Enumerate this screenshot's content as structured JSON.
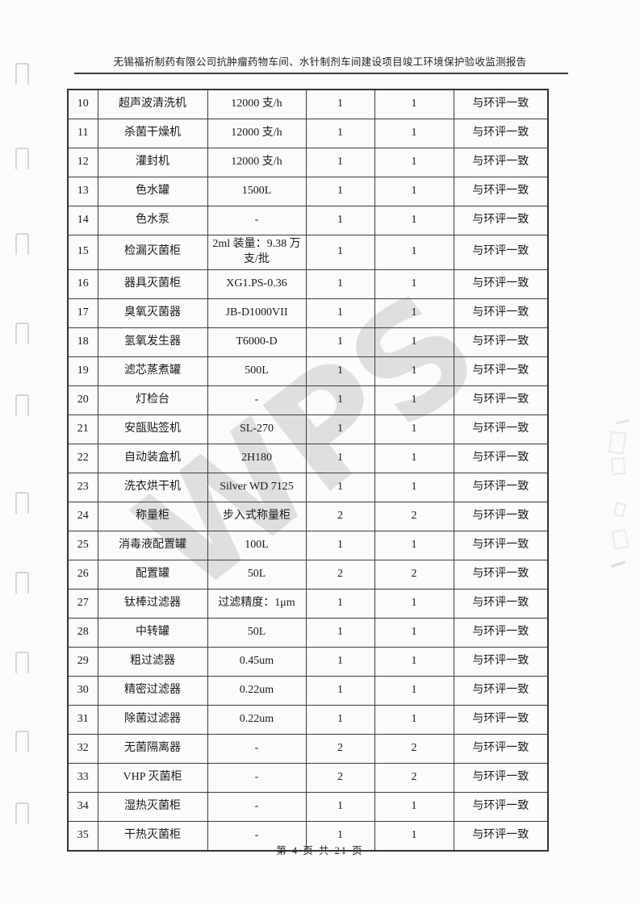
{
  "page": {
    "header_title": "无锡福祈制药有限公司抗肿瘤药物车间、水针制剂车间建设项目竣工环境保护验收监测报告",
    "footer_page_label": "第 4 页 共 21 页",
    "watermark": "WPS"
  },
  "table": {
    "rows": [
      {
        "no": "10",
        "name": "超声波清洗机",
        "spec": "12000 支/h",
        "qty1": "1",
        "qty2": "1",
        "remark": "与环评一致"
      },
      {
        "no": "11",
        "name": "杀菌干燥机",
        "spec": "12000 支/h",
        "qty1": "1",
        "qty2": "1",
        "remark": "与环评一致"
      },
      {
        "no": "12",
        "name": "灌封机",
        "spec": "12000 支/h",
        "qty1": "1",
        "qty2": "1",
        "remark": "与环评一致"
      },
      {
        "no": "13",
        "name": "色水罐",
        "spec": "1500L",
        "qty1": "1",
        "qty2": "1",
        "remark": "与环评一致"
      },
      {
        "no": "14",
        "name": "色水泵",
        "spec": "-",
        "qty1": "1",
        "qty2": "1",
        "remark": "与环评一致"
      },
      {
        "no": "15",
        "name": "检漏灭菌柜",
        "spec": "2ml 装量：9.38 万支/批",
        "qty1": "1",
        "qty2": "1",
        "remark": "与环评一致"
      },
      {
        "no": "16",
        "name": "器具灭菌柜",
        "spec": "XG1.PS-0.36",
        "qty1": "1",
        "qty2": "1",
        "remark": "与环评一致"
      },
      {
        "no": "17",
        "name": "臭氧灭菌器",
        "spec": "JB-D1000VII",
        "qty1": "1",
        "qty2": "1",
        "remark": "与环评一致"
      },
      {
        "no": "18",
        "name": "氢氧发生器",
        "spec": "T6000-D",
        "qty1": "1",
        "qty2": "1",
        "remark": "与环评一致"
      },
      {
        "no": "19",
        "name": "滤芯蒸煮罐",
        "spec": "500L",
        "qty1": "1",
        "qty2": "1",
        "remark": "与环评一致"
      },
      {
        "no": "20",
        "name": "灯检台",
        "spec": "-",
        "qty1": "1",
        "qty2": "1",
        "remark": "与环评一致"
      },
      {
        "no": "21",
        "name": "安瓿贴签机",
        "spec": "SL-270",
        "qty1": "1",
        "qty2": "1",
        "remark": "与环评一致"
      },
      {
        "no": "22",
        "name": "自动装盒机",
        "spec": "2H180",
        "qty1": "1",
        "qty2": "1",
        "remark": "与环评一致"
      },
      {
        "no": "23",
        "name": "洗衣烘干机",
        "spec": "Silver WD 7125",
        "qty1": "1",
        "qty2": "1",
        "remark": "与环评一致"
      },
      {
        "no": "24",
        "name": "称量柜",
        "spec": "步入式称量柜",
        "qty1": "2",
        "qty2": "2",
        "remark": "与环评一致"
      },
      {
        "no": "25",
        "name": "消毒液配置罐",
        "spec": "100L",
        "qty1": "1",
        "qty2": "1",
        "remark": "与环评一致"
      },
      {
        "no": "26",
        "name": "配置罐",
        "spec": "50L",
        "qty1": "2",
        "qty2": "2",
        "remark": "与环评一致"
      },
      {
        "no": "27",
        "name": "钛棒过滤器",
        "spec": "过滤精度：1μm",
        "qty1": "1",
        "qty2": "1",
        "remark": "与环评一致"
      },
      {
        "no": "28",
        "name": "中转罐",
        "spec": "50L",
        "qty1": "1",
        "qty2": "1",
        "remark": "与环评一致"
      },
      {
        "no": "29",
        "name": "粗过滤器",
        "spec": "0.45um",
        "qty1": "1",
        "qty2": "1",
        "remark": "与环评一致"
      },
      {
        "no": "30",
        "name": "精密过滤器",
        "spec": "0.22um",
        "qty1": "1",
        "qty2": "1",
        "remark": "与环评一致"
      },
      {
        "no": "31",
        "name": "除菌过滤器",
        "spec": "0.22um",
        "qty1": "1",
        "qty2": "1",
        "remark": "与环评一致"
      },
      {
        "no": "32",
        "name": "无菌隔离器",
        "spec": "-",
        "qty1": "2",
        "qty2": "2",
        "remark": "与环评一致"
      },
      {
        "no": "33",
        "name": "VHP 灭菌柜",
        "spec": "-",
        "qty1": "2",
        "qty2": "2",
        "remark": "与环评一致"
      },
      {
        "no": "34",
        "name": "湿热灭菌柜",
        "spec": "-",
        "qty1": "1",
        "qty2": "1",
        "remark": "与环评一致"
      },
      {
        "no": "35",
        "name": "干热灭菌柜",
        "spec": "-",
        "qty1": "1",
        "qty2": "1",
        "remark": "与环评一致"
      }
    ]
  }
}
